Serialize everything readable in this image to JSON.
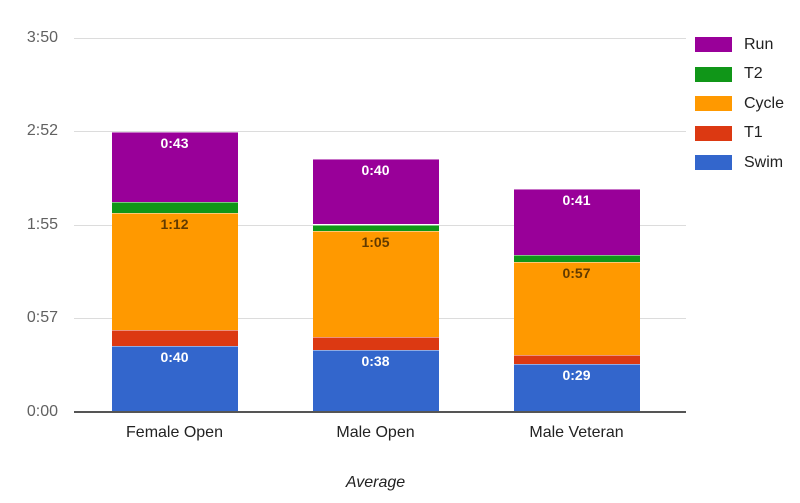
{
  "chart_data": {
    "type": "bar",
    "stacked": true,
    "orientation": "vertical",
    "title": "",
    "xlabel": "Average",
    "ylabel": "",
    "unit": "h:mm (values in minutes)",
    "categories": [
      "Female Open",
      "Male Open",
      "Male Veteran"
    ],
    "series": [
      {
        "name": "Swim",
        "color": "#3366CC",
        "values": [
          40,
          38,
          29
        ],
        "labels": [
          "0:40",
          "0:38",
          "0:29"
        ],
        "label_inside_color": "#ffffff"
      },
      {
        "name": "T1",
        "color": "#DC3912",
        "values": [
          10,
          8,
          6
        ],
        "labels": [
          "0:10",
          "0:08",
          "0:06"
        ],
        "label_inside_color": "#ffffff"
      },
      {
        "name": "Cycle",
        "color": "#FF9900",
        "values": [
          72,
          65,
          57
        ],
        "labels": [
          "1:12",
          "1:05",
          "0:57"
        ],
        "label_inside_color": "rgba(0,0,0,0.62)"
      },
      {
        "name": "T2",
        "color": "#109618",
        "values": [
          7,
          4,
          4
        ],
        "labels": [
          "0:07",
          "0:04",
          "0:04"
        ],
        "label_inside_color": "#ffffff"
      },
      {
        "name": "Run",
        "color": "#990099",
        "values": [
          43,
          40,
          41
        ],
        "labels": [
          "0:43",
          "0:40",
          "0:41"
        ],
        "label_inside_color": "#ffffff"
      }
    ],
    "totals_minutes": [
      172,
      155,
      137
    ],
    "ylim": [
      0,
      230
    ],
    "y_ticks": [
      {
        "value": 0,
        "label": "0:00"
      },
      {
        "value": 57.5,
        "label": "0:57"
      },
      {
        "value": 115,
        "label": "1:55"
      },
      {
        "value": 172.5,
        "label": "2:52"
      },
      {
        "value": 230,
        "label": "3:50"
      }
    ],
    "grid": true,
    "legend": {
      "position": "right",
      "items": [
        "Run",
        "T2",
        "Cycle",
        "T1",
        "Swim"
      ]
    },
    "colors": {
      "gridline": "#dcdcdc",
      "baseline": "#555555",
      "y_tick_text": "#616161",
      "x_tick_text": "#222222",
      "axis_title_text": "#222222",
      "legend_text": "#222222",
      "background": "#ffffff"
    }
  }
}
